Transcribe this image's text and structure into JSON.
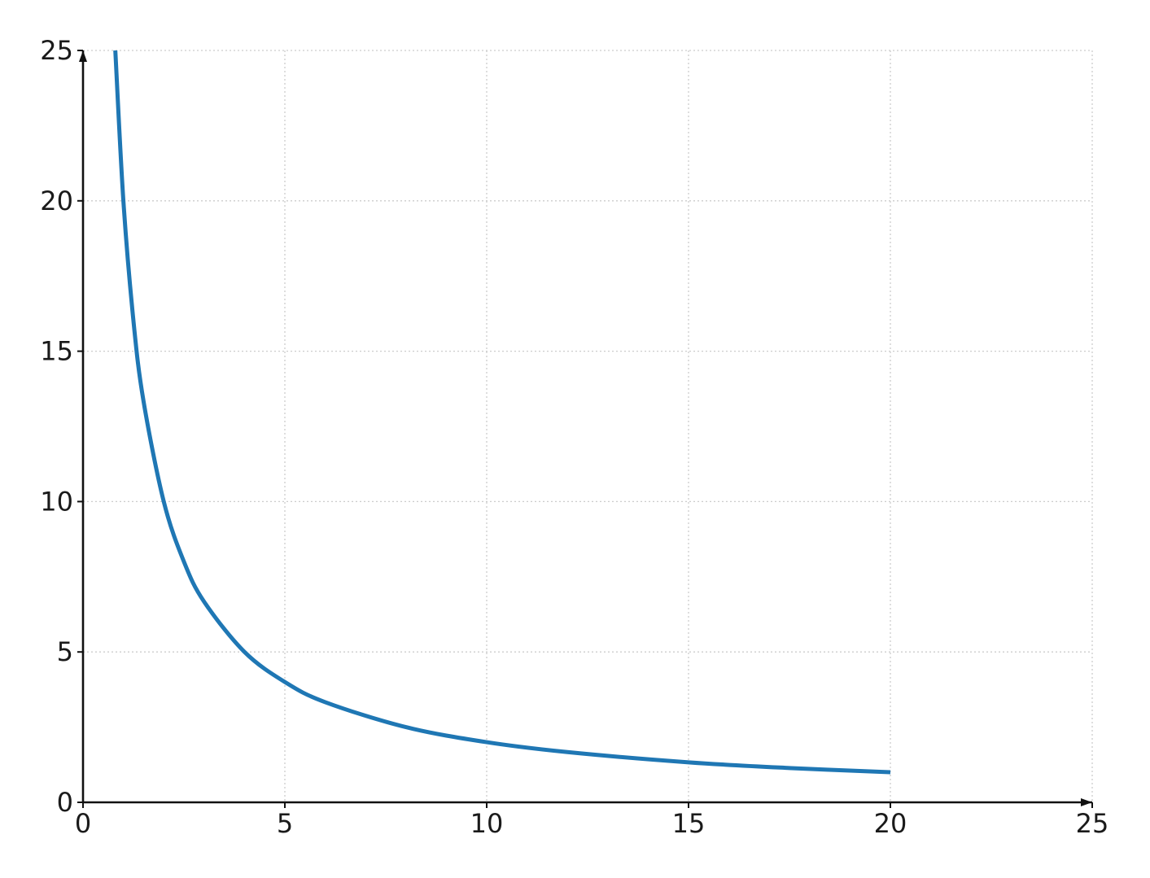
{
  "chart_data": {
    "type": "line",
    "title": "",
    "xlabel": "",
    "ylabel": "",
    "xlim": [
      0,
      25
    ],
    "ylim": [
      0,
      25
    ],
    "x_ticks": [
      "0",
      "5",
      "10",
      "15",
      "20",
      "25"
    ],
    "y_ticks": [
      "0",
      "5",
      "10",
      "15",
      "20",
      "25"
    ],
    "grid": true,
    "axis_arrows": true,
    "series": [
      {
        "color": "#1f77b4",
        "x": [
          0.8,
          1,
          1.25,
          1.5,
          2,
          2.5,
          3,
          4,
          5,
          6,
          8,
          10,
          12,
          15,
          17.5,
          20
        ],
        "y": [
          25,
          20,
          16,
          13.33,
          10,
          8,
          6.67,
          5,
          4,
          3.33,
          2.5,
          2,
          1.67,
          1.33,
          1.14,
          1
        ]
      }
    ]
  }
}
